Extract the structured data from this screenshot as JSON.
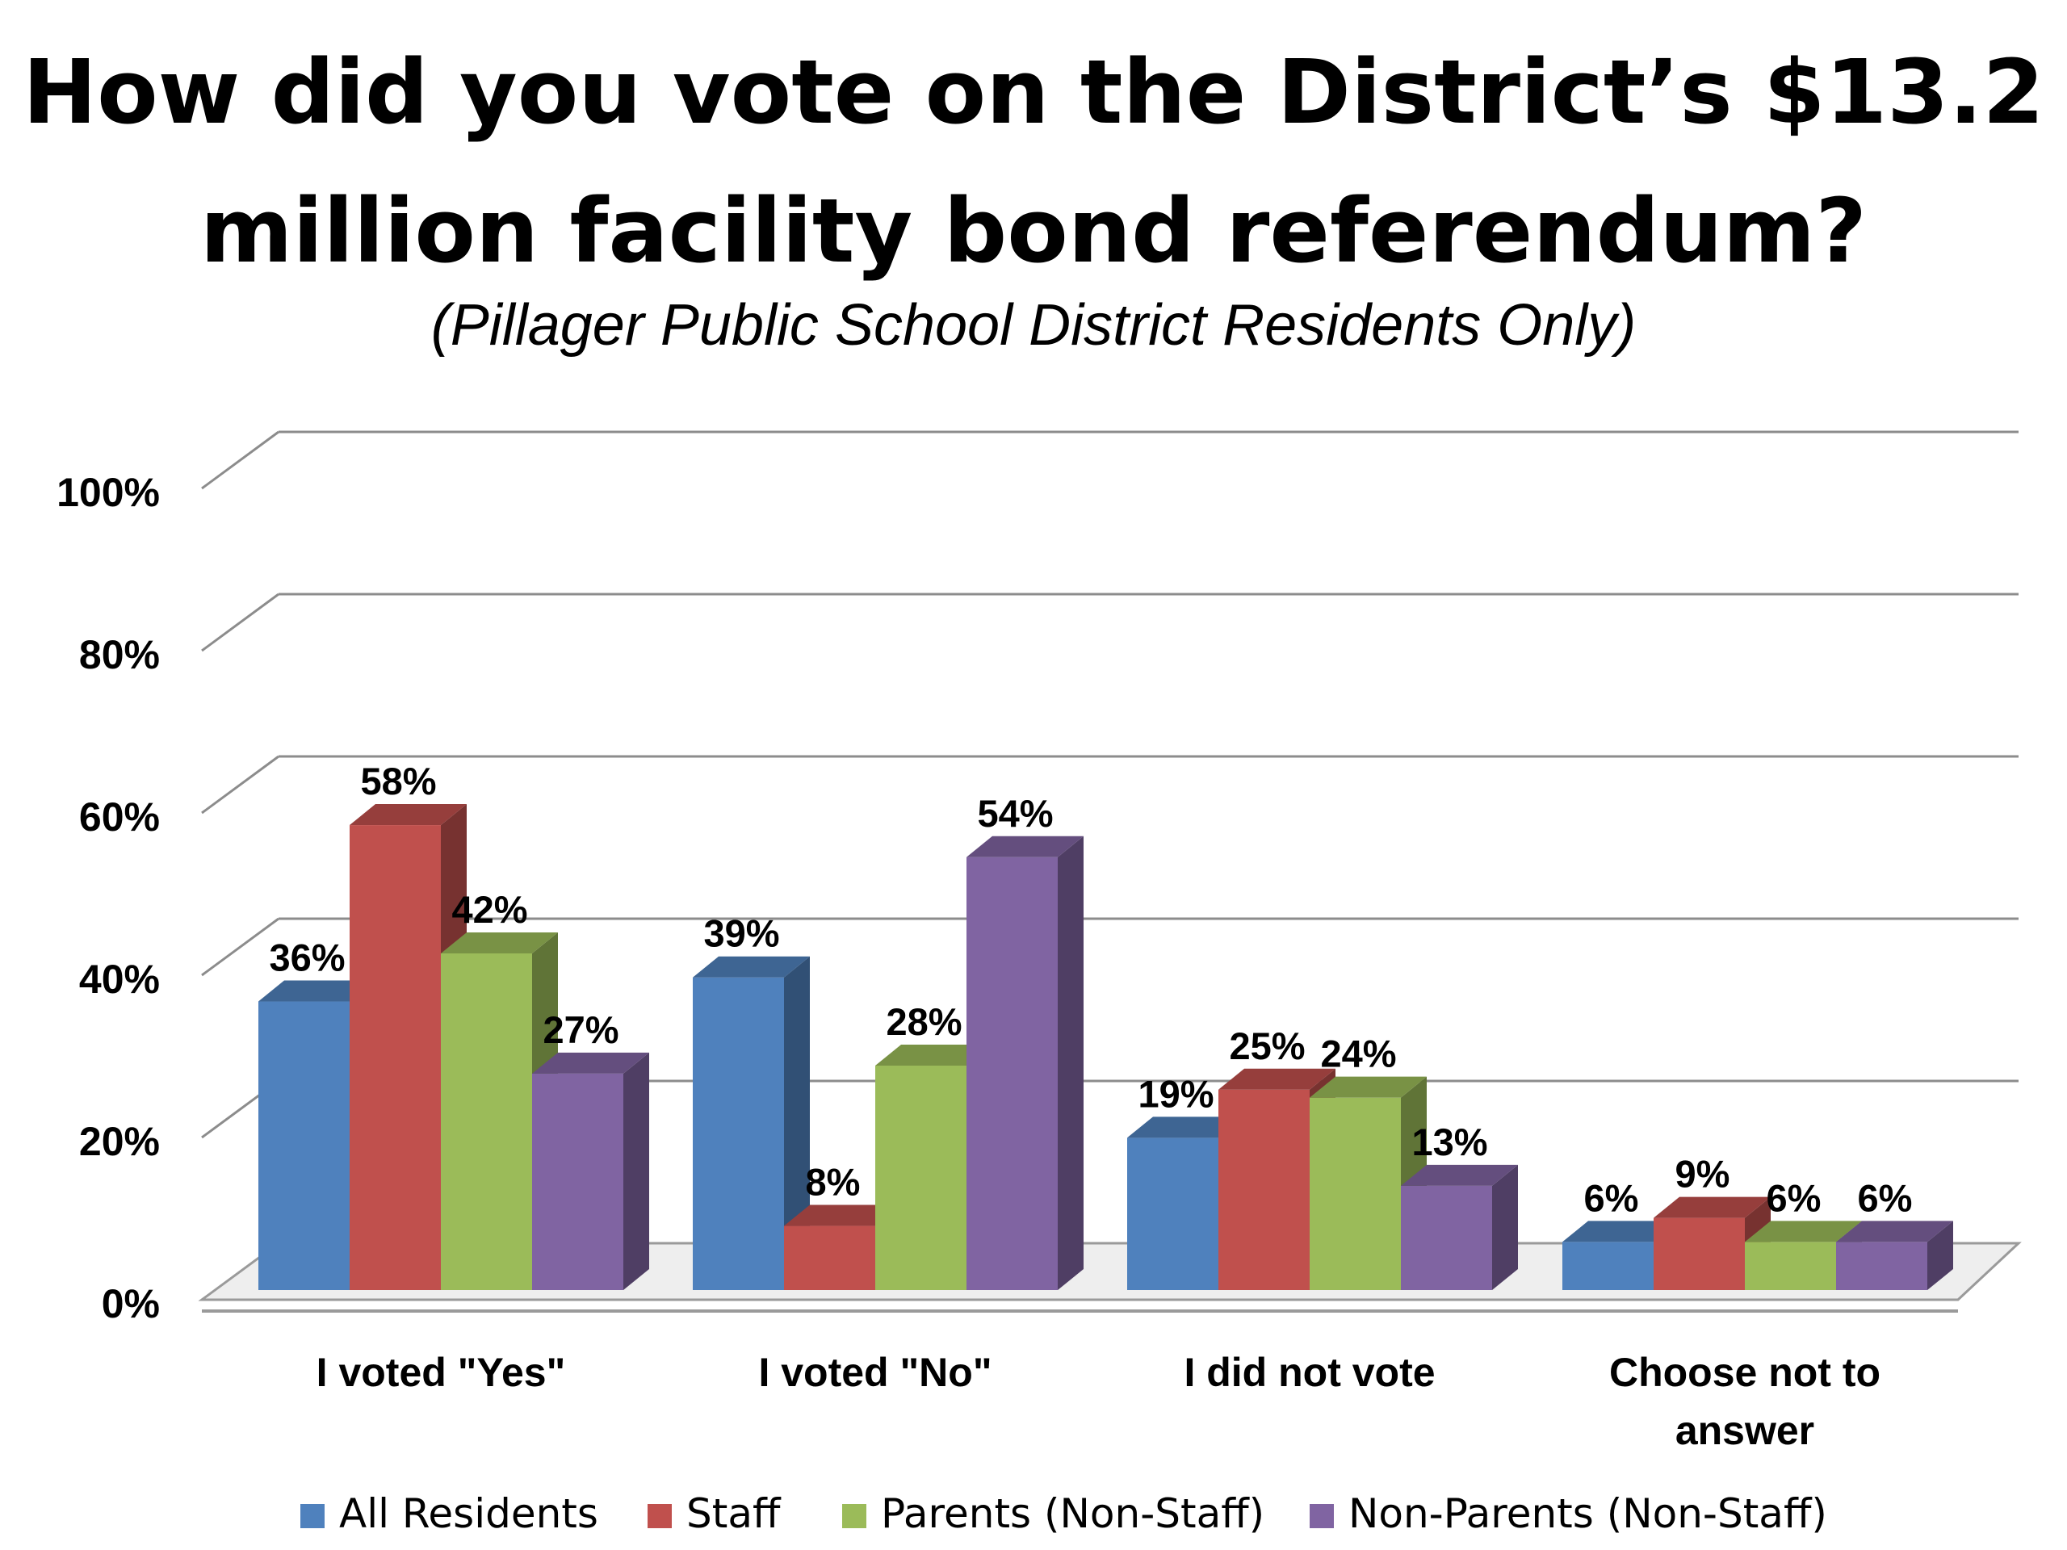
{
  "chart_data": {
    "type": "bar",
    "title": "How did you vote on the District’s $13.2 million facility bond referendum?",
    "subtitle": "(Pillager Public School District Residents Only)",
    "categories": [
      "I voted \"Yes\"",
      "I voted \"No\"",
      "I did not vote",
      "Choose not to answer"
    ],
    "category_lines": [
      [
        "I voted \"Yes\""
      ],
      [
        "I voted \"No\""
      ],
      [
        "I did not vote"
      ],
      [
        "Choose not to",
        "answer"
      ]
    ],
    "series": [
      {
        "name": "All Residents",
        "values": [
          36,
          39,
          19,
          6
        ],
        "color": "#4F81BD"
      },
      {
        "name": "Staff",
        "values": [
          58,
          8,
          25,
          9
        ],
        "color": "#C0504D"
      },
      {
        "name": "Parents (Non-Staff)",
        "values": [
          42,
          28,
          24,
          6
        ],
        "color": "#9BBB59"
      },
      {
        "name": "Non-Parents (Non-Staff)",
        "values": [
          27,
          54,
          13,
          6
        ],
        "color": "#8064A2"
      }
    ],
    "value_format": "{v}%",
    "yticks": [
      "0%",
      "20%",
      "40%",
      "60%",
      "80%",
      "100%"
    ],
    "ylim": [
      0,
      100
    ],
    "grid": true,
    "legend": "bottom"
  }
}
